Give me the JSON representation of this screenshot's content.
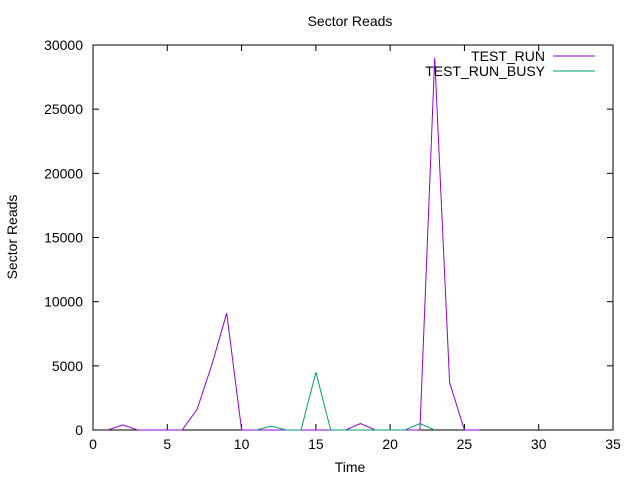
{
  "chart_data": {
    "type": "line",
    "title": "Sector Reads",
    "xlabel": "Time",
    "ylabel": "Sector Reads",
    "xlim": [
      0,
      35
    ],
    "ylim": [
      0,
      30000
    ],
    "xticks": [
      0,
      5,
      10,
      15,
      20,
      25,
      30,
      35
    ],
    "yticks": [
      0,
      5000,
      10000,
      15000,
      20000,
      25000,
      30000
    ],
    "grid": false,
    "legend_position": "top-right",
    "series": [
      {
        "name": "TEST_RUN",
        "color": "#9400d3",
        "x": [
          1,
          2,
          3,
          4,
          5,
          6,
          7,
          8,
          9,
          10,
          11,
          12,
          13,
          14,
          15,
          16,
          17,
          18,
          19,
          20,
          21,
          22,
          23,
          24,
          25,
          26
        ],
        "y": [
          0,
          400,
          0,
          0,
          0,
          0,
          1600,
          5100,
          9100,
          0,
          0,
          0,
          0,
          0,
          0,
          0,
          0,
          500,
          0,
          0,
          0,
          0,
          29000,
          3700,
          0,
          0
        ]
      },
      {
        "name": "TEST_RUN_BUSY",
        "color": "#009e73",
        "x": [
          11,
          12,
          13,
          14,
          15,
          16,
          21,
          22,
          23
        ],
        "y": [
          0,
          300,
          0,
          0,
          4500,
          0,
          0,
          500,
          0
        ]
      }
    ]
  }
}
